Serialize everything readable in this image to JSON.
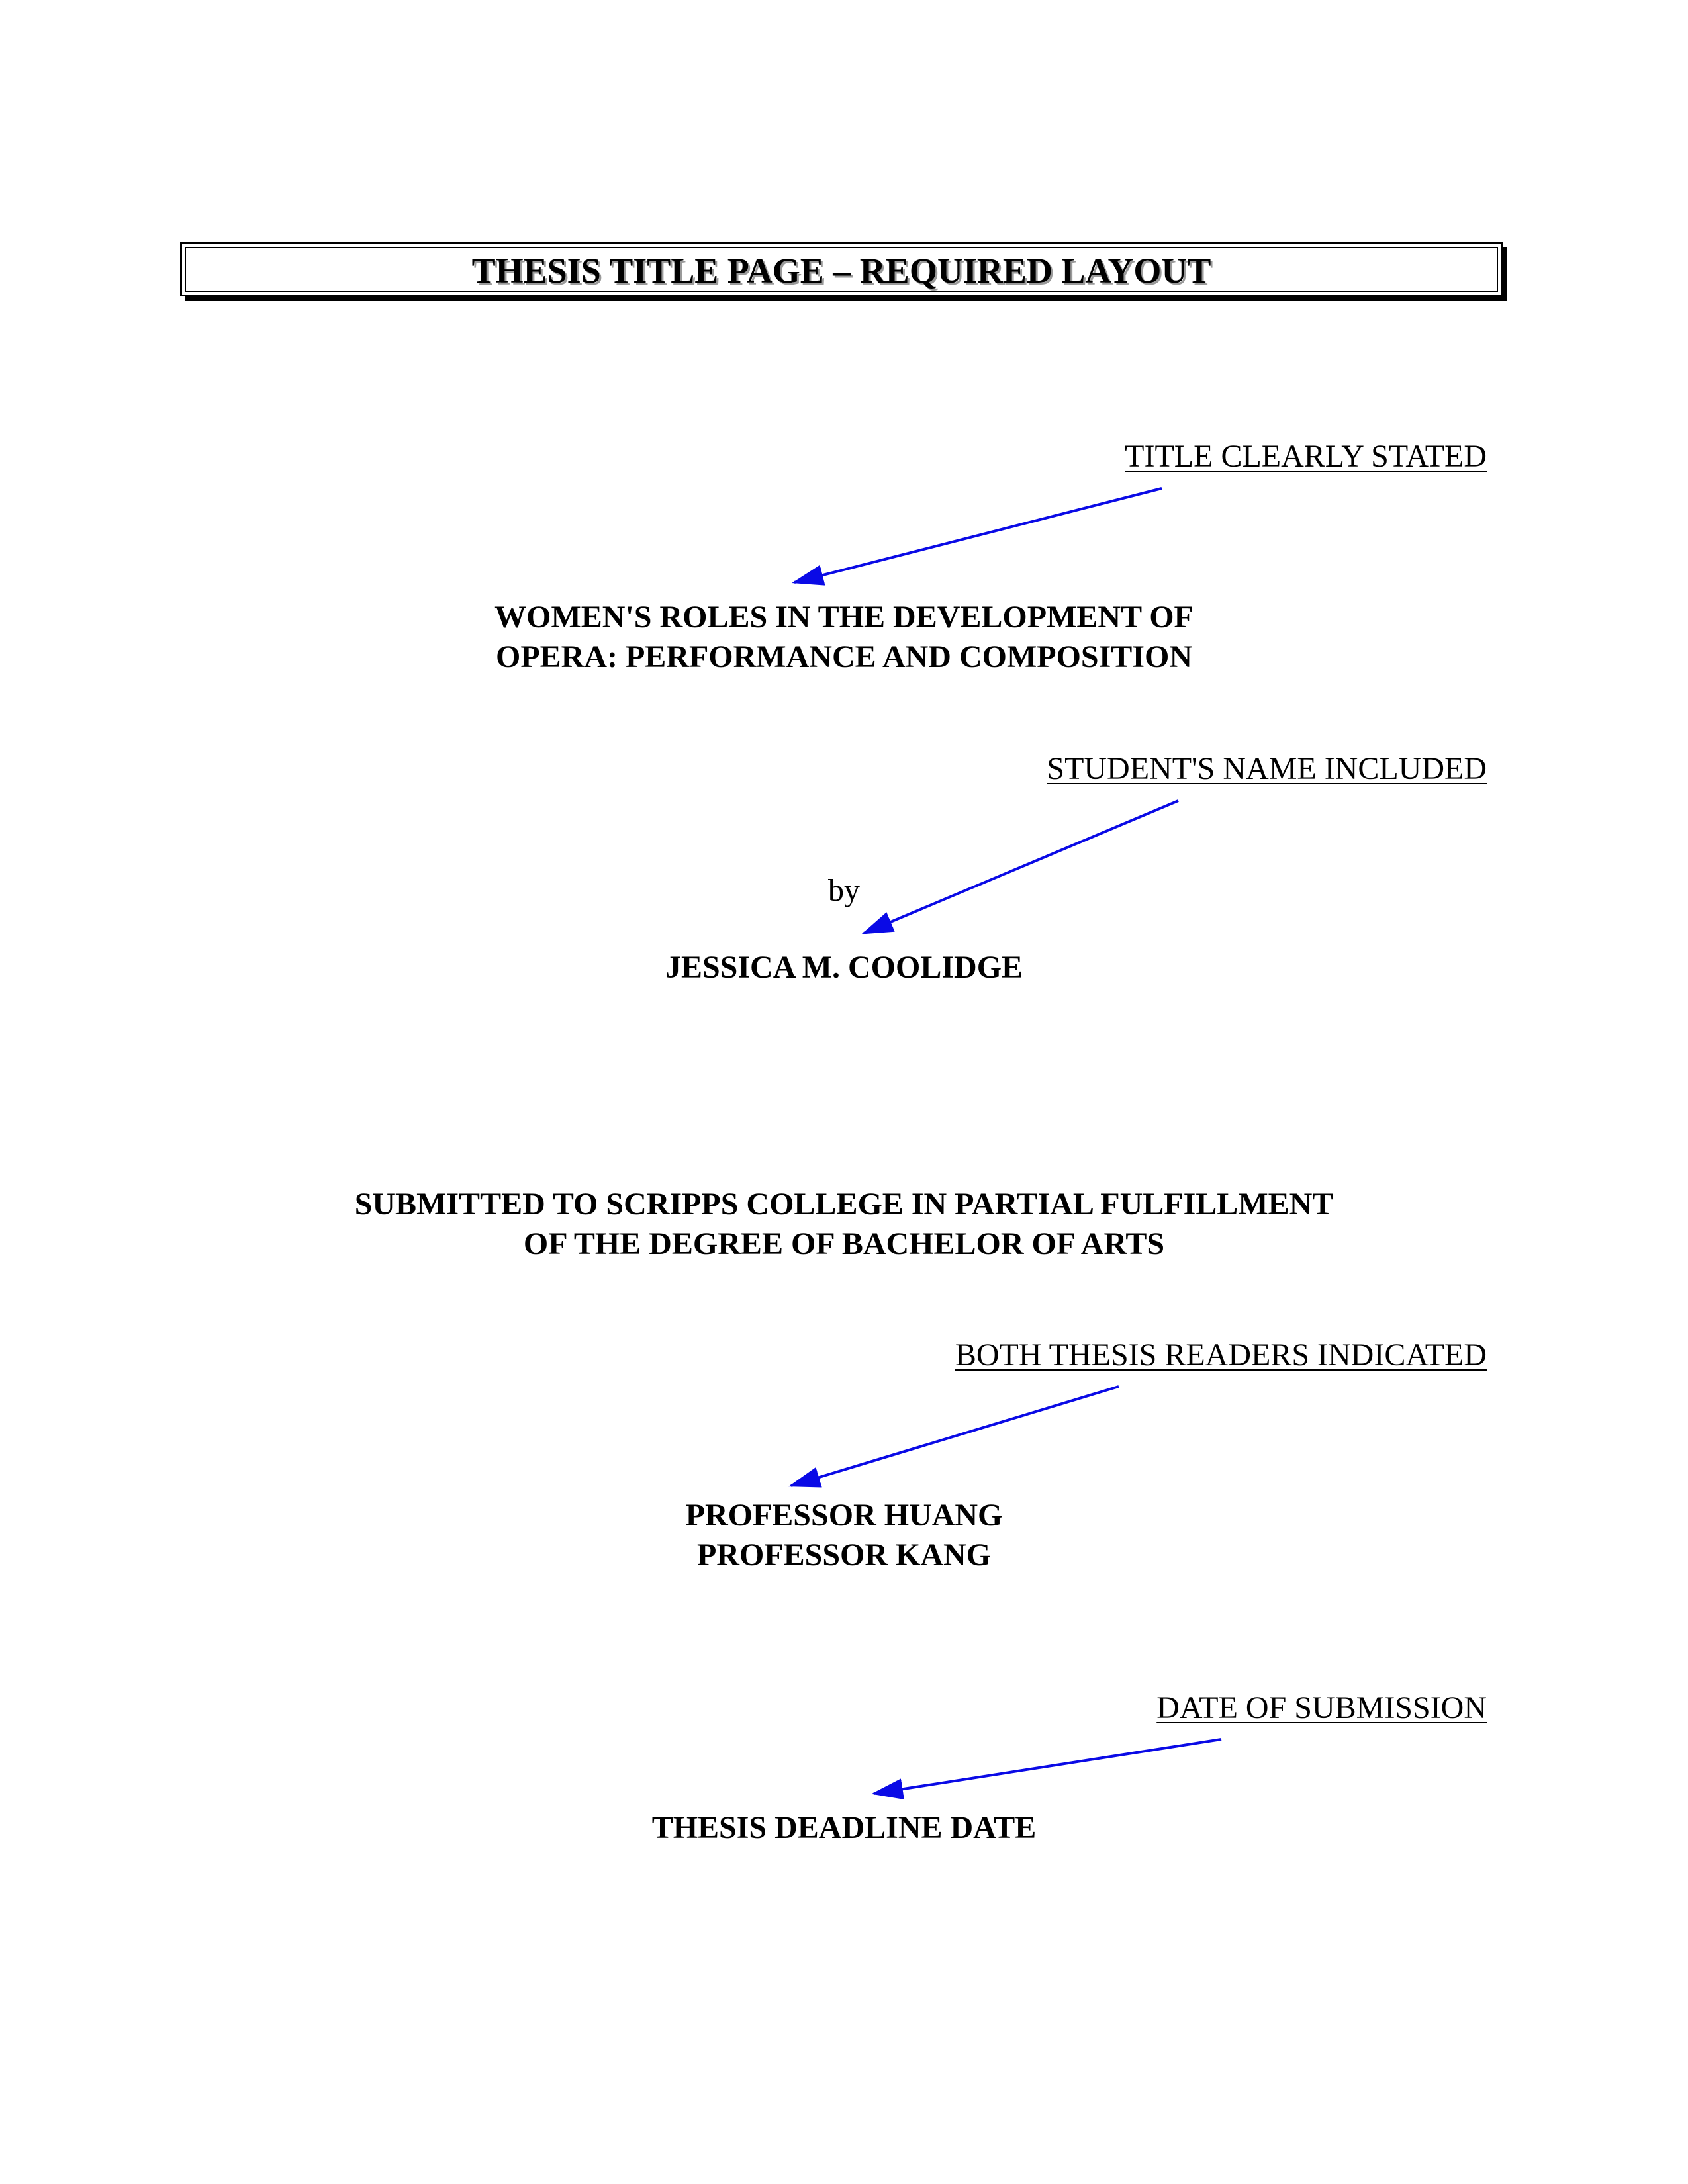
{
  "header": {
    "title": "THESIS TITLE PAGE – REQUIRED LAYOUT"
  },
  "annotations": {
    "title_note": "TITLE CLEARLY STATED",
    "name_note": "STUDENT'S NAME INCLUDED",
    "readers_note": "BOTH THESIS READERS INDICATED",
    "date_note": "DATE OF SUBMISSION"
  },
  "thesis": {
    "title_line1": "WOMEN'S ROLES IN THE DEVELOPMENT OF",
    "title_line2": "OPERA:  PERFORMANCE AND COMPOSITION",
    "by": "by",
    "author": "JESSICA M. COOLIDGE",
    "submission_line1": "SUBMITTED TO SCRIPPS COLLEGE IN PARTIAL FULFILLMENT",
    "submission_line2": "OF THE DEGREE OF BACHELOR OF ARTS",
    "reader1": "PROFESSOR HUANG",
    "reader2": "PROFESSOR KANG",
    "date": "THESIS DEADLINE DATE"
  },
  "colors": {
    "arrow": "#0a0ae6"
  }
}
